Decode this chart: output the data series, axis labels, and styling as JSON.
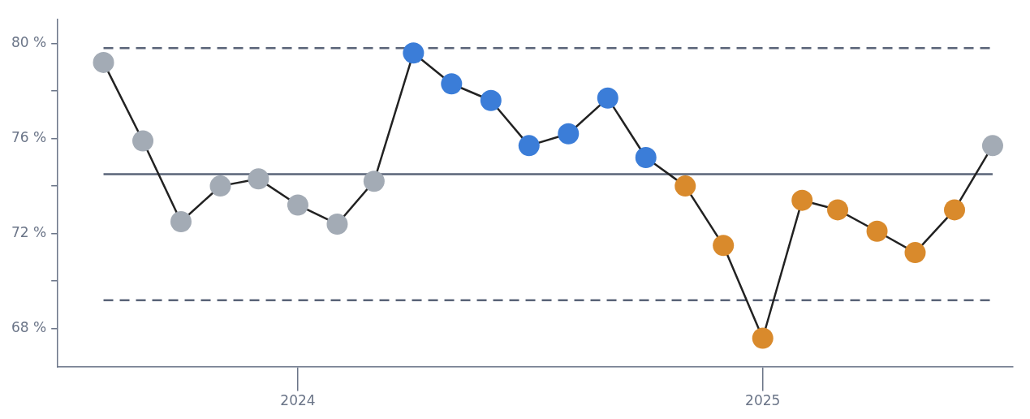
{
  "chart_data": {
    "type": "line",
    "x": [
      "2023-08",
      "2023-09",
      "2023-10",
      "2023-11",
      "2023-12",
      "2024-01",
      "2024-02",
      "2024-03",
      "2024-04",
      "2024-05",
      "2024-06",
      "2024-07",
      "2024-08",
      "2024-09",
      "2024-10",
      "2024-11",
      "2024-12",
      "2025-01",
      "2025-02",
      "2025-03",
      "2025-04",
      "2025-05",
      "2025-06",
      "2025-07"
    ],
    "values": [
      79.2,
      75.9,
      72.5,
      74.0,
      74.3,
      73.2,
      72.4,
      74.2,
      79.6,
      78.3,
      77.6,
      75.7,
      76.2,
      77.7,
      75.2,
      74.0,
      71.5,
      67.6,
      73.4,
      73.0,
      72.1,
      71.2,
      73.0,
      75.7
    ],
    "color": "#222222",
    "colors": [
      "#a3abb5",
      "#a3abb5",
      "#a3abb5",
      "#a3abb5",
      "#a3abb5",
      "#a3abb5",
      "#a3abb5",
      "#a3abb5",
      "#3b7dd8",
      "#3b7dd8",
      "#3b7dd8",
      "#3b7dd8",
      "#3b7dd8",
      "#3b7dd8",
      "#3b7dd8",
      "#d98a2c",
      "#d98a2c",
      "#d98a2c",
      "#d98a2c",
      "#d98a2c",
      "#d98a2c",
      "#d98a2c",
      "#d98a2c",
      "#a3abb5"
    ],
    "marker": "circle",
    "line_style": "solid",
    "grid": false,
    "legend": false,
    "xlim": [
      "2023-06-26",
      "2025-07-17"
    ],
    "xticks": [
      "2024",
      "2025"
    ],
    "ylim": [
      66.4,
      81
    ],
    "yticks": [
      {
        "value": 68,
        "label": "68 %"
      },
      {
        "value": 70,
        "label": null
      },
      {
        "value": 72,
        "label": "72 %"
      },
      {
        "value": 74,
        "label": null
      },
      {
        "value": 76,
        "label": "76 %"
      },
      {
        "value": 78,
        "label": null
      },
      {
        "value": 80,
        "label": "80 %"
      }
    ],
    "ref_lines": [
      {
        "axis": "y",
        "value": 79.8,
        "line_style": "dashed",
        "color": "#5a6478"
      },
      {
        "axis": "y",
        "value": 74.5,
        "line_style": "solid",
        "color": "#5a6478"
      },
      {
        "axis": "y",
        "value": 69.2,
        "line_style": "dashed",
        "color": "#5a6478"
      }
    ]
  }
}
